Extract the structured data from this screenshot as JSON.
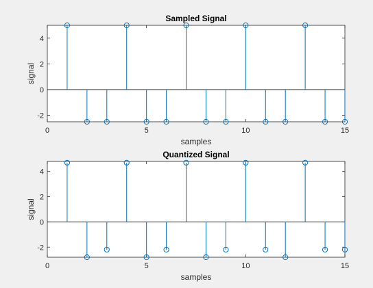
{
  "colors": {
    "stem": "#0072bd",
    "axes": "#262626",
    "figure_bg": "#f0f0f0",
    "plot_bg": "#ffffff"
  },
  "chart_data": [
    {
      "type": "stem",
      "title": "Sampled Signal",
      "xlabel": "samples",
      "ylabel": "signal",
      "xlim": [
        0,
        15
      ],
      "ylim": [
        -2.5,
        5
      ],
      "xticks": [
        0,
        5,
        10,
        15
      ],
      "yticks": [
        -2,
        0,
        2,
        4
      ],
      "xtick_labels": [
        "0",
        "5",
        "10",
        "15"
      ],
      "ytick_labels": [
        "-2",
        "0",
        "2",
        "4"
      ],
      "grid": false,
      "x": [
        1,
        2,
        3,
        4,
        5,
        6,
        7,
        8,
        9,
        10,
        11,
        12,
        13,
        14,
        15
      ],
      "values": [
        5,
        -2.5,
        -2.5,
        5,
        -2.5,
        -2.5,
        5,
        -2.5,
        -2.5,
        5,
        -2.5,
        -2.5,
        5,
        -2.5,
        -2.5
      ]
    },
    {
      "type": "stem",
      "title": "Quantized Signal",
      "xlabel": "samples",
      "ylabel": "signal",
      "xlim": [
        0,
        15
      ],
      "ylim": [
        -2.8,
        4.8
      ],
      "xticks": [
        0,
        5,
        10,
        15
      ],
      "yticks": [
        -2,
        0,
        2,
        4
      ],
      "xtick_labels": [
        "0",
        "5",
        "10",
        "15"
      ],
      "ytick_labels": [
        "-2",
        "0",
        "2",
        "4"
      ],
      "grid": false,
      "x": [
        1,
        2,
        3,
        4,
        5,
        6,
        7,
        8,
        9,
        10,
        11,
        12,
        13,
        14,
        15
      ],
      "values": [
        4.7,
        -2.8,
        -2.2,
        4.7,
        -2.8,
        -2.2,
        4.7,
        -2.8,
        -2.2,
        4.7,
        -2.2,
        -2.8,
        4.7,
        -2.2,
        -2.2
      ]
    }
  ]
}
